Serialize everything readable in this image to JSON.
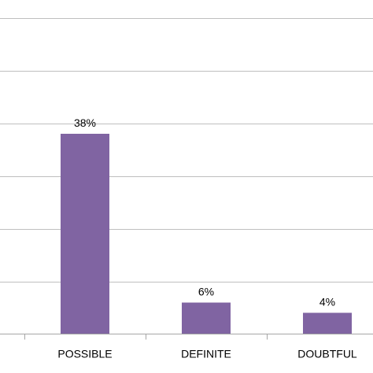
{
  "chart_data": {
    "type": "bar",
    "categories": [
      "POSSIBLE",
      "DEFINITE",
      "DOUBTFUL"
    ],
    "values": [
      38,
      6,
      4
    ],
    "data_labels": [
      "38%",
      "6%",
      "4%"
    ],
    "unit": "%",
    "title": "",
    "xlabel": "",
    "ylabel": "",
    "ylim": [
      0,
      60
    ],
    "gridlines_at": [
      0,
      10,
      20,
      30,
      40,
      50,
      60
    ],
    "grid": true,
    "legend": "none",
    "bar_color": "#8064a2"
  }
}
